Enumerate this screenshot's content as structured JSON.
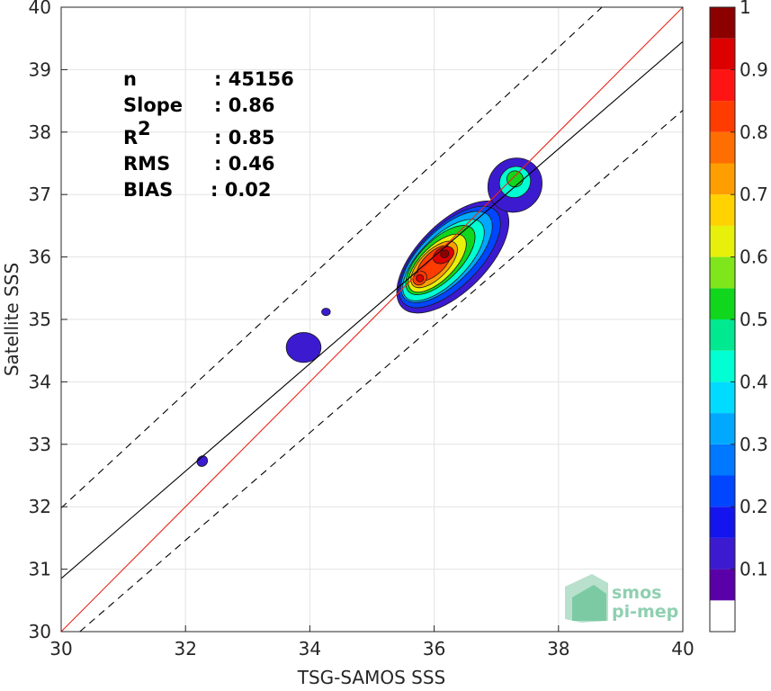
{
  "chart_data": {
    "type": "contour-scatter",
    "xlabel": "TSG-SAMOS SSS",
    "ylabel": "Satellite SSS",
    "xlim": [
      30,
      40
    ],
    "ylim": [
      30,
      40
    ],
    "x_ticks": [
      "30",
      "32",
      "34",
      "36",
      "38",
      "40"
    ],
    "y_ticks": [
      "30",
      "31",
      "32",
      "33",
      "34",
      "35",
      "36",
      "37",
      "38",
      "39",
      "40"
    ],
    "grid": true,
    "stats": [
      {
        "label": "n",
        "value": ": 45156"
      },
      {
        "label": "Slope",
        "value": ": 0.86"
      },
      {
        "label": "R",
        "sup": "2",
        "value": ": 0.85"
      },
      {
        "label": "RMS",
        "value": ": 0.46"
      },
      {
        "label": "BIAS",
        "value": ": 0.02"
      }
    ],
    "lines": {
      "identity": {
        "x": [
          30,
          40
        ],
        "y": [
          30,
          40
        ],
        "color": "#e8261a"
      },
      "regression": {
        "x": [
          30,
          40
        ],
        "y": [
          30.85,
          39.45
        ],
        "color": "#000000"
      },
      "upper_bound": {
        "x": [
          30,
          40
        ],
        "y": [
          31.98,
          41.2
        ],
        "color": "#000000",
        "dash": true
      },
      "lower_bound": {
        "x": [
          30.3,
          40
        ],
        "y": [
          30,
          38.35
        ],
        "color": "#000000",
        "dash": true
      }
    },
    "density_contours": [
      {
        "level": 0.1,
        "regions": [
          {
            "cx": 36.3,
            "cy": 36.0,
            "rx": 1.15,
            "ry": 0.55,
            "rot": 45
          },
          {
            "cx": 37.3,
            "cy": 37.15,
            "rx": 0.45,
            "ry": 0.42,
            "rot": 45
          },
          {
            "cx": 33.9,
            "cy": 34.55,
            "rx": 0.28,
            "ry": 0.24,
            "rot": 0
          },
          {
            "cx": 34.26,
            "cy": 35.12,
            "rx": 0.07,
            "ry": 0.06,
            "rot": 0
          },
          {
            "cx": 32.27,
            "cy": 32.73,
            "rx": 0.09,
            "ry": 0.08,
            "rot": 45
          }
        ]
      },
      {
        "level": 0.2,
        "regions": [
          {
            "cx": 36.25,
            "cy": 36.0,
            "rx": 1.05,
            "ry": 0.48,
            "rot": 45
          }
        ]
      },
      {
        "level": 0.3,
        "regions": [
          {
            "cx": 36.2,
            "cy": 36.0,
            "rx": 0.95,
            "ry": 0.42,
            "rot": 45
          }
        ]
      },
      {
        "level": 0.4,
        "regions": [
          {
            "cx": 36.15,
            "cy": 35.95,
            "rx": 0.85,
            "ry": 0.37,
            "rot": 45
          },
          {
            "cx": 37.3,
            "cy": 37.2,
            "rx": 0.26,
            "ry": 0.24,
            "rot": 45
          }
        ]
      },
      {
        "level": 0.5,
        "regions": [
          {
            "cx": 36.1,
            "cy": 35.95,
            "rx": 0.72,
            "ry": 0.32,
            "rot": 45
          },
          {
            "cx": 37.3,
            "cy": 37.25,
            "rx": 0.13,
            "ry": 0.13,
            "rot": 45
          }
        ]
      },
      {
        "level": 0.6,
        "regions": [
          {
            "cx": 36.05,
            "cy": 35.9,
            "rx": 0.6,
            "ry": 0.27,
            "rot": 45
          }
        ]
      },
      {
        "level": 0.7,
        "regions": [
          {
            "cx": 36.0,
            "cy": 35.88,
            "rx": 0.48,
            "ry": 0.22,
            "rot": 45
          }
        ]
      },
      {
        "level": 0.8,
        "regions": [
          {
            "cx": 36.0,
            "cy": 35.9,
            "rx": 0.36,
            "ry": 0.17,
            "rot": 45
          },
          {
            "cx": 35.77,
            "cy": 35.66,
            "rx": 0.12,
            "ry": 0.1,
            "rot": 45
          }
        ]
      },
      {
        "level": 0.9,
        "regions": [
          {
            "cx": 36.15,
            "cy": 36.03,
            "rx": 0.18,
            "ry": 0.12,
            "rot": 30
          },
          {
            "cx": 35.77,
            "cy": 35.66,
            "rx": 0.06,
            "ry": 0.06,
            "rot": 45
          }
        ]
      },
      {
        "level": 1.0,
        "regions": [
          {
            "cx": 36.17,
            "cy": 36.05,
            "rx": 0.07,
            "ry": 0.06,
            "rot": 30
          }
        ]
      }
    ],
    "colorbar": {
      "ticks": [
        "0.1",
        "0.2",
        "0.3",
        "0.4",
        "0.5",
        "0.6",
        "0.7",
        "0.8",
        "0.9",
        "1"
      ],
      "levels": [
        0.05,
        0.1,
        0.15,
        0.2,
        0.25,
        0.3,
        0.35,
        0.4,
        0.45,
        0.5,
        0.55,
        0.6,
        0.65,
        0.7,
        0.75,
        0.8,
        0.85,
        0.9,
        0.95
      ],
      "colors": [
        "#5a00a8",
        "#3c1ad0",
        "#1414ee",
        "#0046ff",
        "#0078ff",
        "#00a8ff",
        "#00dcff",
        "#00ffd2",
        "#00e890",
        "#10d61c",
        "#7ee61a",
        "#e6f00a",
        "#ffd200",
        "#ff9e00",
        "#ff6e00",
        "#ff3c00",
        "#ff1414",
        "#dc0000",
        "#8c0000"
      ]
    }
  },
  "logo": {
    "line1": "smos",
    "line2": "pi-mep"
  }
}
